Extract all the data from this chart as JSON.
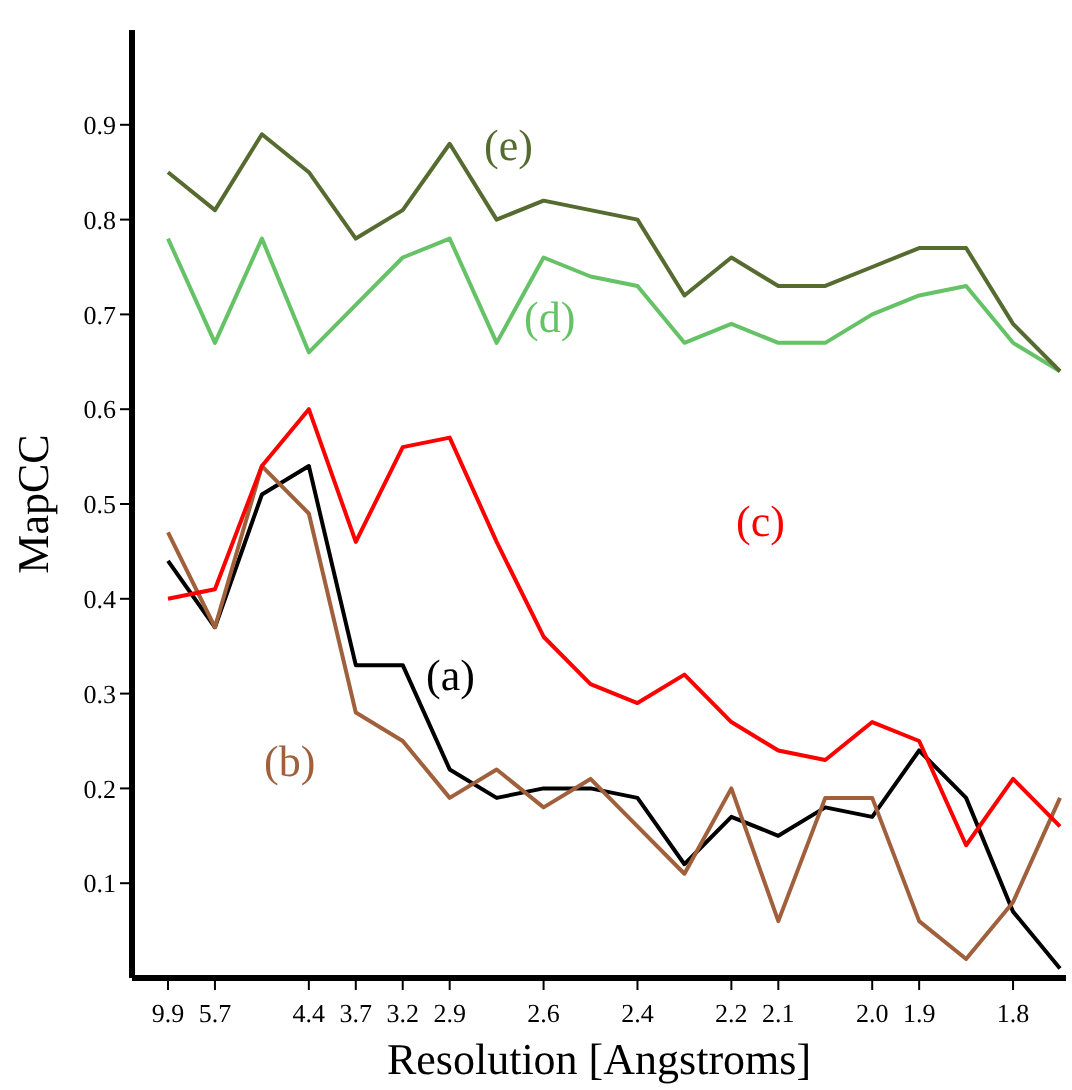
{
  "chart_data": {
    "type": "line",
    "xlabel": "Resolution [Angstroms]",
    "ylabel": "MapCC",
    "categories": [
      "9.9",
      "5.7",
      null,
      "4.4",
      "3.7",
      "3.2",
      "2.9",
      null,
      "2.6",
      null,
      "2.4",
      null,
      "2.2",
      "2.1",
      null,
      "2.0",
      "1.9",
      null,
      "1.8",
      null
    ],
    "series": [
      {
        "name": "(a)",
        "color": "#000000",
        "values": [
          0.44,
          0.37,
          0.51,
          0.54,
          0.33,
          0.33,
          0.22,
          0.19,
          0.2,
          0.2,
          0.19,
          0.12,
          0.17,
          0.15,
          0.18,
          0.17,
          0.24,
          0.19,
          0.07,
          0.01
        ]
      },
      {
        "name": "(b)",
        "color": "#a0603c",
        "values": [
          0.47,
          0.37,
          0.54,
          0.49,
          0.28,
          0.25,
          0.19,
          0.22,
          0.18,
          0.21,
          0.16,
          0.11,
          0.2,
          0.06,
          0.19,
          0.19,
          0.06,
          0.02,
          0.08,
          0.19
        ]
      },
      {
        "name": "(c)",
        "color": "#ff0000",
        "values": [
          0.4,
          0.41,
          0.54,
          0.6,
          0.46,
          0.56,
          0.57,
          0.46,
          0.36,
          0.31,
          0.29,
          0.32,
          0.27,
          0.24,
          0.23,
          0.27,
          0.25,
          0.14,
          0.21,
          0.16
        ]
      },
      {
        "name": "(d)",
        "color": "#66c266",
        "values": [
          0.78,
          0.67,
          0.78,
          0.66,
          0.71,
          0.76,
          0.78,
          0.67,
          0.76,
          0.74,
          0.73,
          0.67,
          0.69,
          0.67,
          0.67,
          0.7,
          0.72,
          0.73,
          0.67,
          0.64
        ]
      },
      {
        "name": "(e)",
        "color": "#556b2f",
        "values": [
          0.85,
          0.81,
          0.89,
          0.85,
          0.78,
          0.81,
          0.88,
          0.8,
          0.82,
          0.81,
          0.8,
          0.72,
          0.76,
          0.73,
          0.73,
          0.75,
          0.77,
          0.77,
          0.69,
          0.64
        ]
      }
    ],
    "ylim": [
      0,
      1.0
    ],
    "yticks": [
      0.1,
      0.2,
      0.3,
      0.4,
      0.5,
      0.6,
      0.7,
      0.8,
      0.9
    ],
    "grid": false,
    "legend": false,
    "marker": "none",
    "line_style": "solid"
  }
}
